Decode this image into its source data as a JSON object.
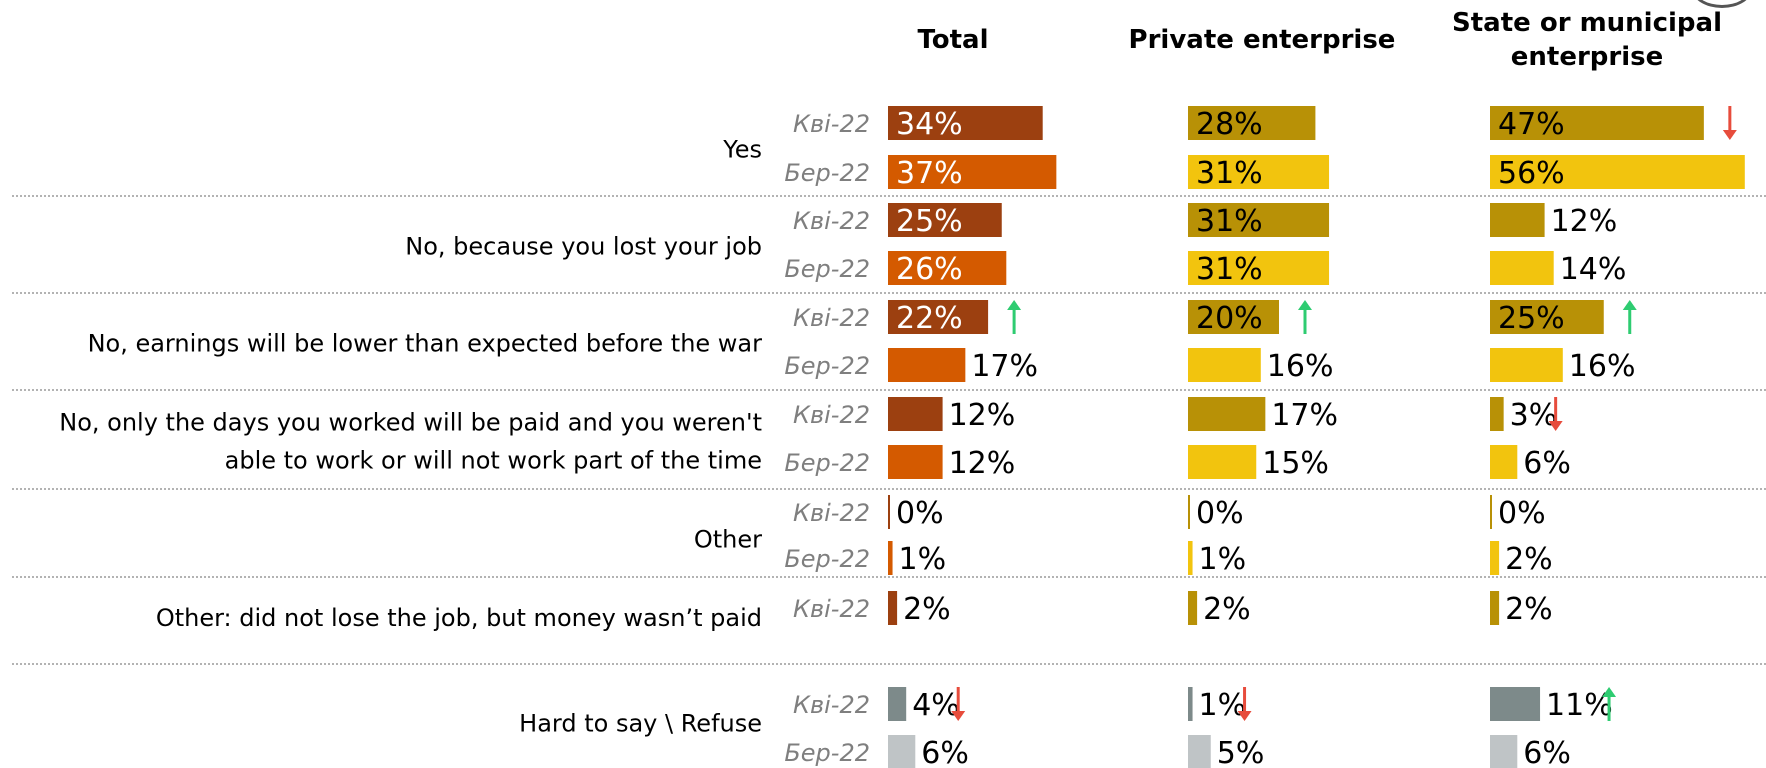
{
  "chart_data": {
    "type": "bar",
    "orientation": "horizontal",
    "columns": [
      "Total",
      "Private enterprise",
      "State or municipal\nenterprise"
    ],
    "periods": [
      "Кві-22",
      "Бер-22"
    ],
    "rows": [
      {
        "label": "Yes",
        "entries": [
          {
            "period": "Кві-22",
            "values": [
              34,
              28,
              47
            ],
            "labels": [
              "34%",
              "28%",
              "47%"
            ],
            "arrows": [
              null,
              null,
              "down"
            ]
          },
          {
            "period": "Бер-22",
            "values": [
              37,
              31,
              56
            ],
            "labels": [
              "37%",
              "31%",
              "56%"
            ],
            "arrows": [
              null,
              null,
              null
            ]
          }
        ]
      },
      {
        "label": "No, because you lost your job",
        "entries": [
          {
            "period": "Кві-22",
            "values": [
              25,
              31,
              12
            ],
            "labels": [
              "25%",
              "31%",
              "12%"
            ],
            "arrows": [
              null,
              null,
              null
            ]
          },
          {
            "period": "Бер-22",
            "values": [
              26,
              31,
              14
            ],
            "labels": [
              "26%",
              "31%",
              "14%"
            ],
            "arrows": [
              null,
              null,
              null
            ]
          }
        ]
      },
      {
        "label": "No, earnings will be lower than expected before the war",
        "entries": [
          {
            "period": "Кві-22",
            "values": [
              22,
              20,
              25
            ],
            "labels": [
              "22%",
              "20%",
              "25%"
            ],
            "arrows": [
              "up",
              "up",
              "up"
            ]
          },
          {
            "period": "Бер-22",
            "values": [
              17,
              16,
              16
            ],
            "labels": [
              "17%",
              "16%",
              "16%"
            ],
            "arrows": [
              null,
              null,
              null
            ]
          }
        ]
      },
      {
        "label": "No, only the days you worked will be paid and you weren't\nable to work or will not work part of the time",
        "entries": [
          {
            "period": "Кві-22",
            "values": [
              12,
              17,
              3
            ],
            "labels": [
              "12%",
              "17%",
              "3%"
            ],
            "arrows": [
              null,
              null,
              "down"
            ]
          },
          {
            "period": "Бер-22",
            "values": [
              12,
              15,
              6
            ],
            "labels": [
              "12%",
              "15%",
              "6%"
            ],
            "arrows": [
              null,
              null,
              null
            ]
          }
        ]
      },
      {
        "label": "Other",
        "entries": [
          {
            "period": "Кві-22",
            "values": [
              0,
              0,
              0
            ],
            "labels": [
              "0%",
              "0%",
              "0%"
            ],
            "arrows": [
              null,
              null,
              null
            ]
          },
          {
            "period": "Бер-22",
            "values": [
              1,
              1,
              2
            ],
            "labels": [
              "1%",
              "1%",
              "2%"
            ],
            "arrows": [
              null,
              null,
              null
            ]
          }
        ]
      },
      {
        "label": "Other: did not lose the job, but money wasn’t paid",
        "entries": [
          {
            "period": "Кві-22",
            "values": [
              2,
              2,
              2
            ],
            "labels": [
              "2%",
              "2%",
              "2%"
            ],
            "arrows": [
              null,
              null,
              null
            ]
          }
        ]
      },
      {
        "label": "Hard to say \\ Refuse",
        "gray": true,
        "entries": [
          {
            "period": "Кві-22",
            "values": [
              4,
              1,
              11
            ],
            "labels": [
              "4%",
              "1%",
              "11%"
            ],
            "arrows": [
              "down",
              "down",
              "up"
            ]
          },
          {
            "period": "Бер-22",
            "values": [
              6,
              5,
              6
            ],
            "labels": [
              "6%",
              "5%",
              "6%"
            ],
            "arrows": [
              null,
              null,
              null
            ]
          }
        ]
      }
    ],
    "colors": {
      "total": {
        "Кві-22": "#9c4010",
        "Бер-22": "#d45a00"
      },
      "segments": {
        "Кві-22": "#b89106",
        "Бер-22": "#f2c40e"
      },
      "gray": {
        "Кві-22": "#7d8a8a",
        "Бер-22": "#bfc4c6"
      },
      "arrow_up": "#2ecc71",
      "arrow_down": "#e74c3c",
      "separator": "#9a9a9a"
    }
  }
}
